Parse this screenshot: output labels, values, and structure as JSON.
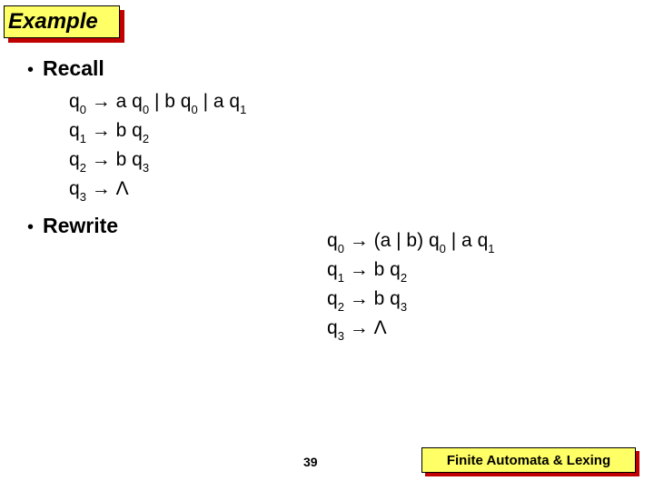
{
  "title": "Example",
  "bullets": {
    "recall": "Recall",
    "rewrite": "Rewrite"
  },
  "recall_rules": {
    "r0": {
      "lhs_state": "q",
      "lhs_sub": "0",
      "parts": [
        {
          "sym": "a",
          "st": "q",
          "sub": "0"
        },
        {
          "sym": "b",
          "st": "q",
          "sub": "0"
        },
        {
          "sym": "a",
          "st": "q",
          "sub": "1"
        }
      ]
    },
    "r1": {
      "lhs_state": "q",
      "lhs_sub": "1",
      "sym": "b",
      "rhs_state": "q",
      "rhs_sub": "2"
    },
    "r2": {
      "lhs_state": "q",
      "lhs_sub": "2",
      "sym": "b",
      "rhs_state": "q",
      "rhs_sub": "3"
    },
    "r3": {
      "lhs_state": "q",
      "lhs_sub": "3",
      "rhs": "Λ"
    }
  },
  "rewrite_rules": {
    "r0": {
      "lhs_state": "q",
      "lhs_sub": "0",
      "grp": "(a | b)",
      "st1": "q",
      "sub1": "0",
      "sym2": "a",
      "st2": "q",
      "sub2": "1"
    },
    "r1": {
      "lhs_state": "q",
      "lhs_sub": "1",
      "sym": "b",
      "rhs_state": "q",
      "rhs_sub": "2"
    },
    "r2": {
      "lhs_state": "q",
      "lhs_sub": "2",
      "sym": "b",
      "rhs_state": "q",
      "rhs_sub": "3"
    },
    "r3": {
      "lhs_state": "q",
      "lhs_sub": "3",
      "rhs": "Λ"
    }
  },
  "glyphs": {
    "arrow": "→",
    "pipe": "|"
  },
  "footer": {
    "page": "39",
    "label": "Finite Automata & Lexing"
  },
  "colors": {
    "box_bg": "#ffff66",
    "box_shadow": "#c00000",
    "text": "#000000",
    "page_bg": "#ffffff"
  }
}
